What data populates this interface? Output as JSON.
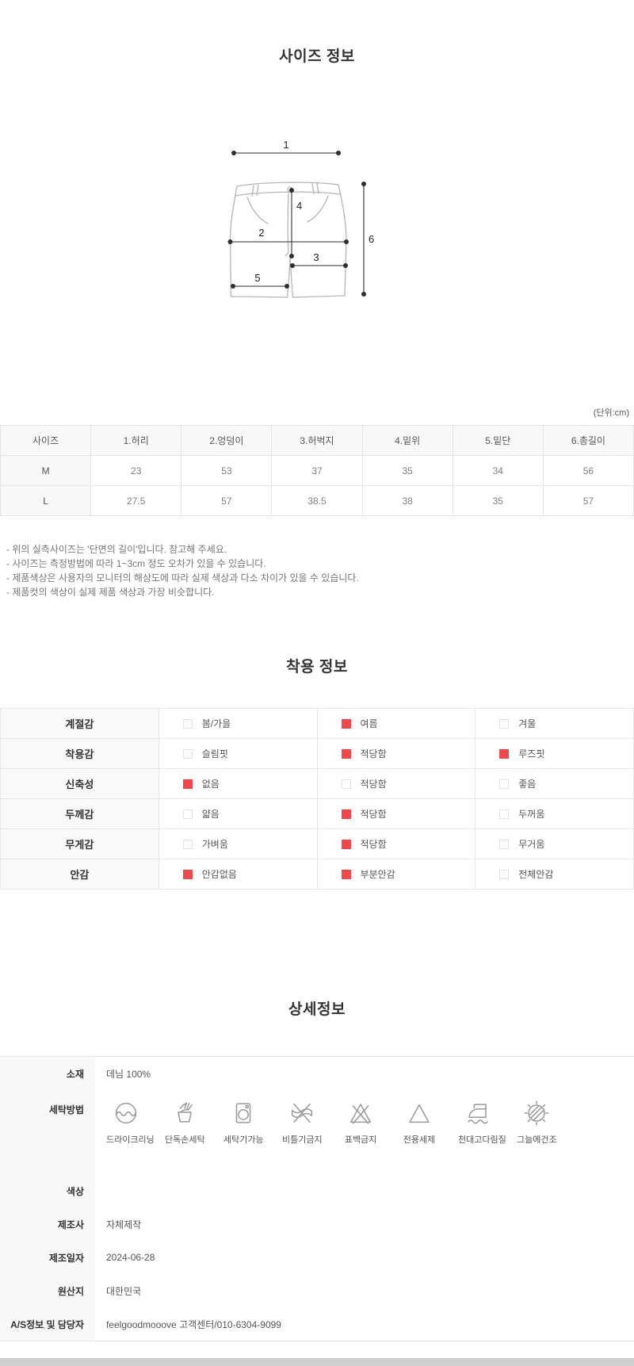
{
  "accent_color": "#f0484b",
  "size_section": {
    "title": "사이즈 정보",
    "unit_note": "(단위:cm)",
    "diagram_labels": [
      "1",
      "2",
      "3",
      "4",
      "5",
      "6"
    ],
    "table": {
      "headers": [
        "사이즈",
        "1.허리",
        "2.엉덩이",
        "3.허벅지",
        "4.밑위",
        "5.밑단",
        "6.총길이"
      ],
      "rows": [
        {
          "size": "M",
          "values": [
            "23",
            "53",
            "37",
            "35",
            "34",
            "56"
          ]
        },
        {
          "size": "L",
          "values": [
            "27.5",
            "57",
            "38.5",
            "38",
            "35",
            "57"
          ]
        }
      ]
    },
    "notes": [
      "- 위의 실측사이즈는 '단면의 길이'입니다. 참고해 주세요.",
      "- 사이즈는 측정방법에 따라 1~3cm 정도 오차가 있을 수 있습니다.",
      "- 제품색상은 사용자의 모니터의 해상도에 따라 실제 색상과 다소 차이가 있을 수 있습니다.",
      "- 제품컷의 색상이 실제 제품 색상과 가장 비슷합니다."
    ]
  },
  "fit_section": {
    "title": "착용 정보",
    "rows": [
      {
        "label": "계절감",
        "options": [
          {
            "text": "봄/가을",
            "checked": false
          },
          {
            "text": "여름",
            "checked": true
          },
          {
            "text": "겨울",
            "checked": false
          }
        ]
      },
      {
        "label": "착용감",
        "options": [
          {
            "text": "슬림핏",
            "checked": false
          },
          {
            "text": "적당함",
            "checked": true
          },
          {
            "text": "루즈핏",
            "checked": true
          }
        ]
      },
      {
        "label": "신축성",
        "options": [
          {
            "text": "없음",
            "checked": true
          },
          {
            "text": "적당함",
            "checked": false
          },
          {
            "text": "좋음",
            "checked": false
          }
        ]
      },
      {
        "label": "두께감",
        "options": [
          {
            "text": "얇음",
            "checked": false
          },
          {
            "text": "적당함",
            "checked": true
          },
          {
            "text": "두꺼움",
            "checked": false
          }
        ]
      },
      {
        "label": "무게감",
        "options": [
          {
            "text": "가벼움",
            "checked": false
          },
          {
            "text": "적당함",
            "checked": true
          },
          {
            "text": "무거움",
            "checked": false
          }
        ]
      },
      {
        "label": "안감",
        "options": [
          {
            "text": "안감없음",
            "checked": true
          },
          {
            "text": "부분안감",
            "checked": true
          },
          {
            "text": "전체안감",
            "checked": false
          }
        ]
      }
    ]
  },
  "detail_section": {
    "title": "상세정보",
    "rows": [
      {
        "label": "소재",
        "value": "데님 100%"
      },
      {
        "label": "세탁방법",
        "value": "",
        "icons": true
      },
      {
        "label": "색상",
        "value": ""
      },
      {
        "label": "제조사",
        "value": "자체제작"
      },
      {
        "label": "제조일자",
        "value": "2024-06-28"
      },
      {
        "label": "원산지",
        "value": "대한민국"
      },
      {
        "label": "A/S정보 및 담당자",
        "value": "feelgoodmooove 고객센터/010-6304-9099"
      }
    ],
    "care_icons": [
      {
        "name": "dry-clean-icon",
        "label": "드라이크리닝"
      },
      {
        "name": "hand-wash-icon",
        "label": "단독손세탁"
      },
      {
        "name": "machine-wash-icon",
        "label": "세탁기가능"
      },
      {
        "name": "no-wring-icon",
        "label": "비틀기금지"
      },
      {
        "name": "no-bleach-icon",
        "label": "표백금지"
      },
      {
        "name": "special-detergent-icon",
        "label": "전용세제"
      },
      {
        "name": "iron-with-cloth-icon",
        "label": "천대고다림질"
      },
      {
        "name": "dry-in-shade-icon",
        "label": "그늘에건조"
      }
    ]
  }
}
